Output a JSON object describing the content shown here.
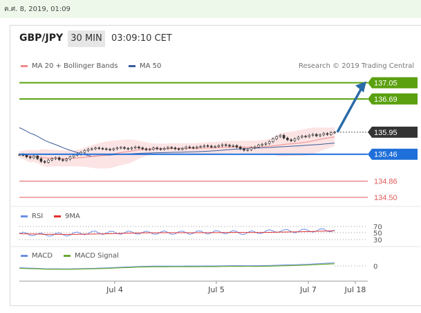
{
  "date_header": "ค.ศ. 8, 2019, 01:09",
  "header": {
    "pair": "GBP/JPY",
    "timeframe": "30 MIN",
    "time": "03:09:10 CET"
  },
  "legend": {
    "ma20": "MA 20 + Bollinger Bands",
    "ma50": "MA 50",
    "credit": "Research © 2019 Trading Central"
  },
  "colors": {
    "resistance": "#5aa00f",
    "support": "#1e6fd9",
    "minor": "#e05a5a",
    "price_tag": "#333333",
    "arrow": "#2b6aa8",
    "ma20": "#f08a8a",
    "ma50": "#3a5a9a",
    "rsi": "#6a8ee8",
    "rsi_ma": "#e03030",
    "macd": "#6a8ee8",
    "macd_signal": "#6aaa30"
  },
  "chart_data": [
    {
      "type": "line",
      "title": "GBP/JPY",
      "xlabel": "",
      "ylabel": "",
      "x_ticks": [
        "Jul 4",
        "Jul 5",
        "Jul 7",
        "Jul 18"
      ],
      "ylim": [
        134.3,
        137.35
      ],
      "close": [
        135.45,
        135.44,
        135.4,
        135.38,
        135.42,
        135.36,
        135.3,
        135.28,
        135.33,
        135.36,
        135.38,
        135.34,
        135.32,
        135.35,
        135.4,
        135.44,
        135.46,
        135.5,
        135.54,
        135.57,
        135.58,
        135.6,
        135.59,
        135.58,
        135.57,
        135.56,
        135.58,
        135.6,
        135.61,
        135.59,
        135.58,
        135.6,
        135.62,
        135.6,
        135.58,
        135.56,
        135.57,
        135.6,
        135.58,
        135.57,
        135.59,
        135.61,
        135.6,
        135.58,
        135.57,
        135.59,
        135.62,
        135.61,
        135.6,
        135.62,
        135.63,
        135.65,
        135.64,
        135.62,
        135.63,
        135.65,
        135.67,
        135.66,
        135.64,
        135.65,
        135.62,
        135.58,
        135.55,
        135.56,
        135.6,
        135.62,
        135.66,
        135.68,
        135.7,
        135.74,
        135.8,
        135.85,
        135.88,
        135.82,
        135.78,
        135.76,
        135.8,
        135.84,
        135.86,
        135.85,
        135.88,
        135.9,
        135.87,
        135.89,
        135.92,
        135.9,
        135.94,
        135.95
      ],
      "levels": [
        {
          "label": "137.05",
          "value": 137.05,
          "kind": "resistance"
        },
        {
          "label": "136.69",
          "value": 136.69,
          "kind": "resistance"
        },
        {
          "label": "135.95",
          "value": 135.95,
          "kind": "price"
        },
        {
          "label": "135.46",
          "value": 135.46,
          "kind": "support"
        },
        {
          "label": "134.86",
          "value": 134.86,
          "kind": "minor"
        },
        {
          "label": "134.50",
          "value": 134.5,
          "kind": "minor"
        }
      ]
    },
    {
      "type": "line",
      "series": [
        {
          "name": "RSI"
        },
        {
          "name": "9MA"
        }
      ],
      "levels": [
        "70",
        "50",
        "30"
      ],
      "ylim": [
        20,
        80
      ]
    },
    {
      "type": "line",
      "series": [
        {
          "name": "MACD"
        },
        {
          "name": "MACD Signal"
        }
      ],
      "levels": [
        "0"
      ]
    }
  ]
}
